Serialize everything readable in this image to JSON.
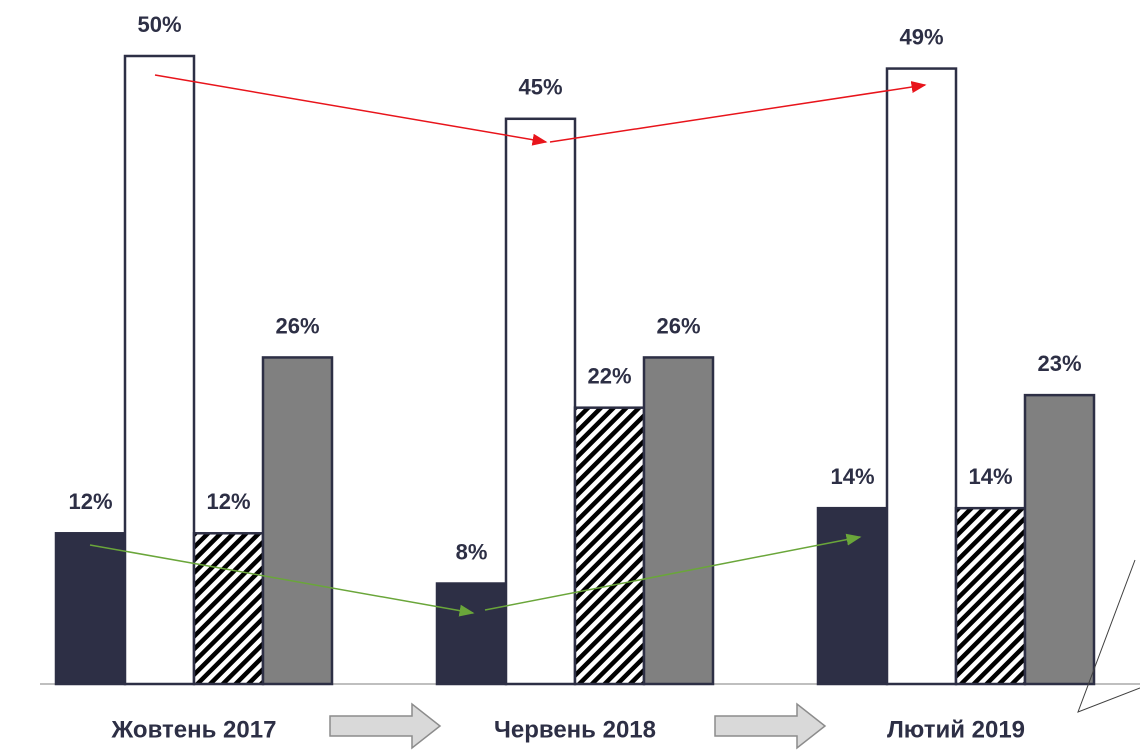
{
  "chart_data": {
    "type": "bar",
    "categories": [
      "Жовтень 2017",
      "Червень 2018",
      "Лютий 2019"
    ],
    "series": [
      {
        "color": "#2d2f45",
        "values": [
          12,
          8,
          14
        ],
        "value_labels": [
          "12%",
          "8%",
          "14%"
        ]
      },
      {
        "color": "#ffffff",
        "values": [
          50,
          45,
          49
        ],
        "value_labels": [
          "50%",
          "45%",
          "49%"
        ]
      },
      {
        "color": "#000000",
        "pattern": "hatch",
        "values": [
          12,
          22,
          14
        ],
        "value_labels": [
          "12%",
          "22%",
          "14%"
        ]
      },
      {
        "color": "#808080",
        "values": [
          26,
          26,
          23
        ],
        "value_labels": [
          "26%",
          "26%",
          "23%"
        ]
      }
    ],
    "ylim": [
      0,
      50
    ]
  }
}
